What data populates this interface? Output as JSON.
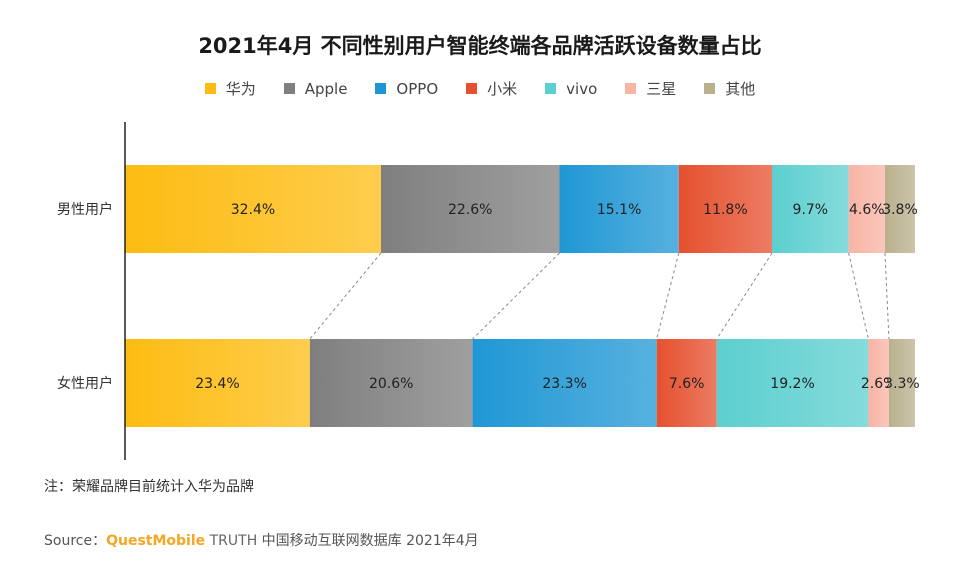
{
  "chart_data": {
    "type": "bar",
    "orientation": "horizontal",
    "stacked": "percent",
    "title": "2021年4月 不同性别用户智能终端各品牌活跃设备数量占比",
    "categories": [
      "男性用户",
      "女性用户"
    ],
    "series": [
      {
        "name": "华为",
        "color": "#fdbc12",
        "values": [
          32.4,
          23.4
        ],
        "labels": [
          "32.4%",
          "23.4%"
        ]
      },
      {
        "name": "Apple",
        "color": "#7f7f7f",
        "values": [
          22.6,
          20.6
        ],
        "labels": [
          "22.6%",
          "20.6%"
        ]
      },
      {
        "name": "OPPO",
        "color": "#1f97d4",
        "values": [
          15.1,
          23.3
        ],
        "labels": [
          "15.1%",
          "23.3%"
        ]
      },
      {
        "name": "小米",
        "color": "#e6502f",
        "values": [
          11.8,
          7.6
        ],
        "labels": [
          "11.8%",
          "7.6%"
        ]
      },
      {
        "name": "vivo",
        "color": "#5ccfcf",
        "values": [
          9.7,
          19.2
        ],
        "labels": [
          "9.7%",
          "19.2%"
        ]
      },
      {
        "name": "三星",
        "color": "#f8b4a4",
        "values": [
          4.6,
          2.6
        ],
        "labels": [
          "4.6%",
          "2.6%"
        ]
      },
      {
        "name": "其他",
        "color": "#b9b08e",
        "values": [
          3.8,
          3.3
        ],
        "labels": [
          "3.8%",
          "3.3%"
        ]
      }
    ],
    "xlim": [
      0,
      100
    ],
    "legend_position": "top",
    "grid": false,
    "connector_lines": true
  },
  "note": "注：荣耀品牌目前统计入华为品牌",
  "source": {
    "prefix": "Source：",
    "brand": "QuestMobile",
    "product": "TRUTH",
    "rest": "中国移动互联网数据库 2021年4月"
  }
}
